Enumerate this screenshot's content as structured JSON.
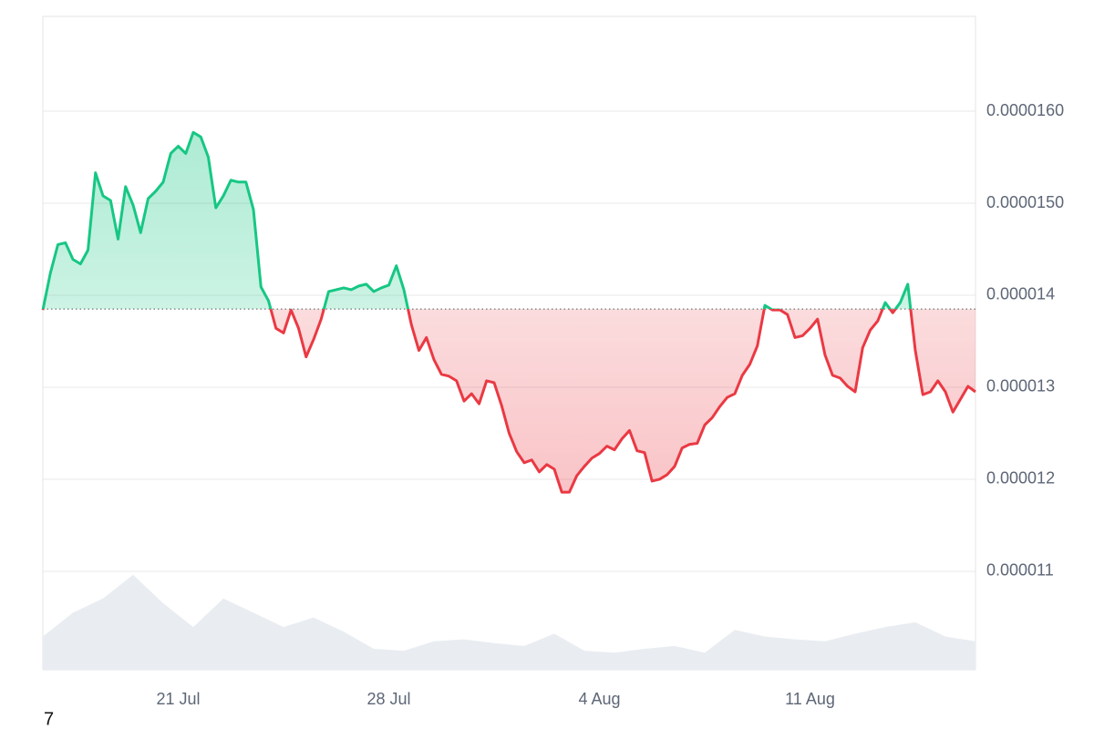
{
  "chart_data": {
    "type": "baseline",
    "x": [
      16.5,
      16.75,
      17,
      17.25,
      17.5,
      17.75,
      18,
      18.25,
      18.5,
      18.75,
      19,
      19.25,
      19.5,
      19.75,
      20,
      20.25,
      20.5,
      20.75,
      21,
      21.25,
      21.5,
      21.75,
      22,
      22.25,
      22.5,
      22.75,
      23,
      23.25,
      23.5,
      23.75,
      24,
      24.25,
      24.5,
      24.75,
      25,
      25.25,
      25.5,
      25.75,
      26,
      26.25,
      26.5,
      26.75,
      27,
      27.25,
      27.5,
      27.75,
      28,
      28.25,
      28.5,
      28.75,
      29,
      29.25,
      29.5,
      29.75,
      30,
      30.25,
      30.5,
      30.75,
      31,
      31.25,
      31.5,
      31.75,
      32,
      32.25,
      32.5,
      32.75,
      33,
      33.25,
      33.5,
      33.75,
      34,
      34.25,
      34.5,
      34.75,
      35,
      35.25,
      35.5,
      35.75,
      36,
      36.25,
      36.5,
      36.75,
      37,
      37.25,
      37.5,
      37.75,
      38,
      38.25,
      38.5,
      38.75,
      39,
      39.25,
      39.5,
      39.75,
      40,
      40.25,
      40.5,
      40.75,
      41,
      41.25,
      41.5,
      41.75,
      42,
      42.25,
      42.5,
      42.75,
      43,
      43.25,
      43.5,
      43.75,
      44,
      44.25,
      44.5,
      44.75,
      45,
      45.25,
      45.5,
      45.75,
      46,
      46.25,
      46.5,
      46.75,
      47,
      47.25,
      47.5
    ],
    "values": [
      1.384e-05,
      1.424e-05,
      1.455e-05,
      1.457e-05,
      1.439e-05,
      1.434e-05,
      1.449e-05,
      1.533e-05,
      1.508e-05,
      1.503e-05,
      1.461e-05,
      1.518e-05,
      1.498e-05,
      1.468e-05,
      1.505e-05,
      1.513e-05,
      1.523e-05,
      1.554e-05,
      1.562e-05,
      1.554e-05,
      1.577e-05,
      1.572e-05,
      1.55e-05,
      1.495e-05,
      1.508e-05,
      1.525e-05,
      1.523e-05,
      1.523e-05,
      1.493e-05,
      1.409e-05,
      1.394e-05,
      1.364e-05,
      1.359e-05,
      1.384e-05,
      1.364e-05,
      1.333e-05,
      1.352e-05,
      1.374e-05,
      1.404e-05,
      1.406e-05,
      1.408e-05,
      1.406e-05,
      1.41e-05,
      1.412e-05,
      1.404e-05,
      1.408e-05,
      1.411e-05,
      1.432e-05,
      1.406e-05,
      1.368e-05,
      1.34e-05,
      1.354e-05,
      1.33e-05,
      1.314e-05,
      1.312e-05,
      1.307e-05,
      1.285e-05,
      1.293e-05,
      1.282e-05,
      1.307e-05,
      1.305e-05,
      1.28e-05,
      1.25e-05,
      1.23e-05,
      1.218e-05,
      1.221e-05,
      1.208e-05,
      1.216e-05,
      1.211e-05,
      1.186e-05,
      1.186e-05,
      1.204e-05,
      1.214e-05,
      1.223e-05,
      1.228e-05,
      1.236e-05,
      1.232e-05,
      1.244e-05,
      1.253e-05,
      1.231e-05,
      1.229e-05,
      1.198e-05,
      1.2e-05,
      1.205e-05,
      1.214e-05,
      1.234e-05,
      1.238e-05,
      1.239e-05,
      1.259e-05,
      1.267e-05,
      1.279e-05,
      1.289e-05,
      1.293e-05,
      1.313e-05,
      1.325e-05,
      1.345e-05,
      1.389e-05,
      1.384e-05,
      1.384e-05,
      1.379e-05,
      1.354e-05,
      1.356e-05,
      1.364e-05,
      1.374e-05,
      1.335e-05,
      1.313e-05,
      1.31e-05,
      1.301e-05,
      1.295e-05,
      1.343e-05,
      1.362e-05,
      1.372e-05,
      1.392e-05,
      1.381e-05,
      1.392e-05,
      1.412e-05,
      1.34e-05,
      1.292e-05,
      1.295e-05,
      1.307e-05,
      1.295e-05,
      1.273e-05,
      1.287e-05,
      1.301e-05,
      1.295e-05
    ],
    "baseline": 1.385e-05,
    "up_color": "#16c784",
    "down_color": "#ea3943",
    "volume": {
      "x": [
        16.5,
        17.5,
        18.5,
        19.5,
        20.5,
        21.5,
        22.5,
        23.5,
        24.5,
        25.5,
        26.5,
        27.5,
        28.5,
        29.5,
        30.5,
        31.5,
        32.5,
        33.5,
        34.5,
        35.5,
        36.5,
        37.5,
        38.5,
        39.5,
        40.5,
        41.5,
        42.5,
        43.5,
        44.5,
        45.5,
        46.5,
        47.5
      ],
      "values": [
        35,
        60,
        75,
        100,
        70,
        45,
        75,
        60,
        45,
        55,
        40,
        22,
        20,
        30,
        32,
        28,
        25,
        38,
        20,
        18,
        22,
        25,
        18,
        42,
        35,
        32,
        30,
        38,
        45,
        50,
        35,
        30
      ],
      "ylim": [
        0,
        110
      ],
      "color": "#e9edf1"
    },
    "xlim": [
      16.5,
      47.5
    ],
    "xticks": [
      {
        "value": 21,
        "label": "21 Jul"
      },
      {
        "value": 28,
        "label": "28 Jul"
      },
      {
        "value": 35,
        "label": "4 Aug"
      },
      {
        "value": 42,
        "label": "11 Aug"
      }
    ],
    "ylim": [
      9.93e-06,
      1.703e-05
    ],
    "yticks": [
      {
        "value": 1.1e-05,
        "label": "0.000011"
      },
      {
        "value": 1.2e-05,
        "label": "0.000012"
      },
      {
        "value": 1.3e-05,
        "label": "0.000013"
      },
      {
        "value": 1.4e-05,
        "label": "0.000014"
      },
      {
        "value": 1.5e-05,
        "label": "0.0000150"
      },
      {
        "value": 1.6e-05,
        "label": "0.0000160"
      }
    ],
    "grid": true,
    "footer_text": "7"
  }
}
